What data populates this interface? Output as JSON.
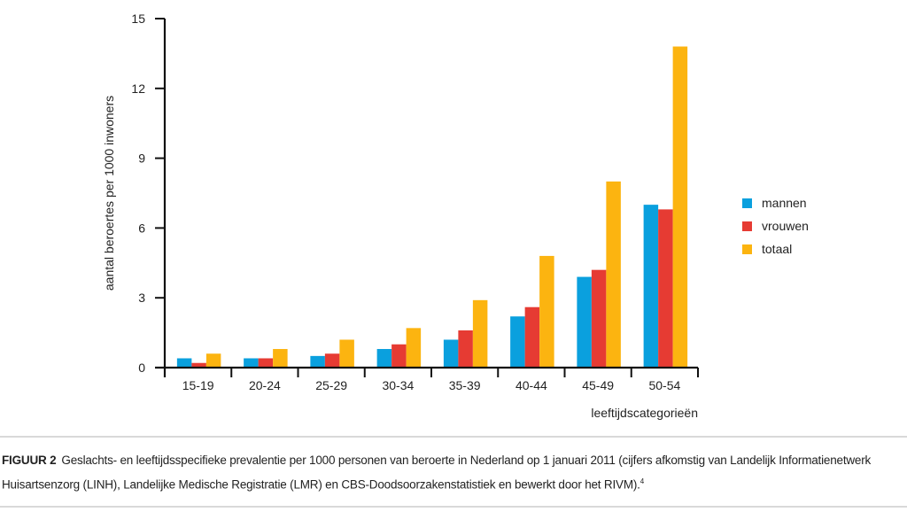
{
  "chart_data": {
    "type": "bar",
    "title": "",
    "xlabel": "leeftijdscategorieën",
    "ylabel": "aantal beroertes per 1000 inwoners",
    "ylim": [
      0,
      15
    ],
    "yticks": [
      0,
      3,
      6,
      9,
      12,
      15
    ],
    "grid": false,
    "legend_position": "right",
    "categories": [
      "15-19",
      "20-24",
      "25-29",
      "30-34",
      "35-39",
      "40-44",
      "45-49",
      "50-54"
    ],
    "series": [
      {
        "name": "mannen",
        "color": "#0aa0de",
        "values": [
          0.4,
          0.4,
          0.5,
          0.8,
          1.2,
          2.2,
          3.9,
          7.0
        ]
      },
      {
        "name": "vrouwen",
        "color": "#e63b33",
        "values": [
          0.2,
          0.4,
          0.6,
          1.0,
          1.6,
          2.6,
          4.2,
          6.8
        ]
      },
      {
        "name": "totaal",
        "color": "#fcb410",
        "values": [
          0.6,
          0.8,
          1.2,
          1.7,
          2.9,
          4.8,
          8.0,
          13.8
        ]
      }
    ]
  },
  "caption": {
    "label": "FIGUUR 2",
    "text": "Geslachts- en leeftijdsspecifieke prevalentie per 1000 personen van beroerte in Nederland op 1 januari 2011 (cijfers afkomstig van Landelijk Informatienetwerk Huisartsenzorg (LINH), Landelijke Medische Registratie (LMR) en CBS-Doodsoorzakenstatistiek en bewerkt door het RIVM).",
    "footnote_ref": "4"
  }
}
